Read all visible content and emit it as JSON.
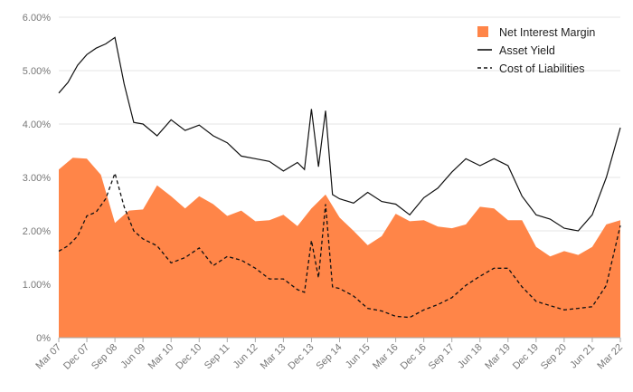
{
  "chart_data": {
    "type": "area+line",
    "title": "",
    "xlabel": "",
    "ylabel": "",
    "ylim": [
      0,
      6
    ],
    "y_ticks": [
      "0%",
      "1.00%",
      "2.00%",
      "3.00%",
      "4.00%",
      "5.00%",
      "6.00%"
    ],
    "x_ticks": [
      "Mar 07",
      "Dec 07",
      "Sep 08",
      "Jun 09",
      "Mar 10",
      "Dec 10",
      "Sep 11",
      "Jun 12",
      "Mar 13",
      "Dec 13",
      "Sep 14",
      "Jun 15",
      "Mar 16",
      "Dec 16",
      "Sep 17",
      "Jun 18",
      "Mar 19",
      "Dec 19",
      "Sep 20",
      "Jun 21",
      "Mar 22"
    ],
    "grid": "horizontal",
    "legend_position": "top-right",
    "colors": {
      "area": "#ff8548",
      "asset_yield": "#111111",
      "cost_of_liabilities": "#111111",
      "grid": "#e6e6e6",
      "axis": "#aaaaaa"
    },
    "series": [
      {
        "name": "Net Interest Margin",
        "style": "area",
        "x": [
          0,
          0.5,
          1,
          1.5,
          2,
          2.5,
          3,
          3.5,
          4,
          4.5,
          5,
          5.5,
          6,
          6.5,
          7,
          7.5,
          8,
          8.5,
          9,
          9.5,
          10,
          10.5,
          11,
          11.5,
          12,
          12.5,
          13,
          13.5,
          14,
          14.5,
          15,
          15.5,
          16,
          16.5,
          17,
          17.5,
          18,
          18.5,
          19,
          19.5,
          20
        ],
        "values": [
          3.15,
          3.37,
          3.35,
          3.05,
          2.15,
          2.38,
          2.4,
          2.85,
          2.65,
          2.42,
          2.65,
          2.5,
          2.28,
          2.38,
          2.18,
          2.2,
          2.3,
          2.09,
          2.42,
          2.68,
          2.25,
          2.0,
          1.73,
          1.9,
          2.32,
          2.18,
          2.2,
          2.08,
          2.05,
          2.12,
          2.45,
          2.42,
          2.2,
          2.2,
          1.7,
          1.52,
          1.62,
          1.55,
          1.7,
          2.12,
          2.2
        ]
      },
      {
        "name": "Asset Yield",
        "style": "solid",
        "x": [
          0,
          0.33,
          0.67,
          1,
          1.33,
          1.67,
          2,
          2.33,
          2.67,
          3,
          3.5,
          4,
          4.5,
          5,
          5.5,
          6,
          6.5,
          7,
          7.5,
          8,
          8.5,
          8.75,
          9,
          9.25,
          9.5,
          9.75,
          10,
          10.5,
          11,
          11.5,
          12,
          12.5,
          13,
          13.5,
          14,
          14.5,
          15,
          15.5,
          16,
          16.5,
          17,
          17.5,
          18,
          18.5,
          19,
          19.5,
          20
        ],
        "values": [
          4.58,
          4.78,
          5.1,
          5.3,
          5.42,
          5.5,
          5.62,
          4.75,
          4.03,
          4.0,
          3.78,
          4.08,
          3.88,
          3.98,
          3.78,
          3.65,
          3.4,
          3.35,
          3.3,
          3.12,
          3.28,
          3.15,
          4.28,
          3.2,
          4.25,
          2.68,
          2.6,
          2.52,
          2.72,
          2.55,
          2.5,
          2.3,
          2.62,
          2.8,
          3.1,
          3.35,
          3.22,
          3.35,
          3.22,
          2.65,
          2.3,
          2.22,
          2.05,
          2.0,
          2.3,
          3.0,
          3.93
        ]
      },
      {
        "name": "Cost of Liabilities",
        "style": "dashed",
        "x": [
          0,
          0.33,
          0.67,
          1,
          1.33,
          1.67,
          2,
          2.33,
          2.67,
          3,
          3.5,
          4,
          4.5,
          5,
          5.5,
          6,
          6.5,
          7,
          7.5,
          8,
          8.5,
          8.75,
          9,
          9.25,
          9.5,
          9.75,
          10,
          10.5,
          11,
          11.5,
          12,
          12.5,
          13,
          13.5,
          14,
          14.5,
          15,
          15.5,
          16,
          16.5,
          17,
          17.5,
          18,
          18.5,
          19,
          19.5,
          20
        ],
        "values": [
          1.62,
          1.72,
          1.9,
          2.28,
          2.35,
          2.6,
          3.08,
          2.45,
          2.0,
          1.85,
          1.72,
          1.4,
          1.5,
          1.68,
          1.35,
          1.52,
          1.45,
          1.3,
          1.1,
          1.1,
          0.9,
          0.85,
          1.82,
          1.12,
          2.5,
          0.95,
          0.92,
          0.78,
          0.55,
          0.5,
          0.4,
          0.38,
          0.52,
          0.62,
          0.75,
          0.98,
          1.15,
          1.3,
          1.3,
          0.95,
          0.68,
          0.6,
          0.52,
          0.55,
          0.58,
          0.98,
          2.1
        ]
      }
    ]
  }
}
